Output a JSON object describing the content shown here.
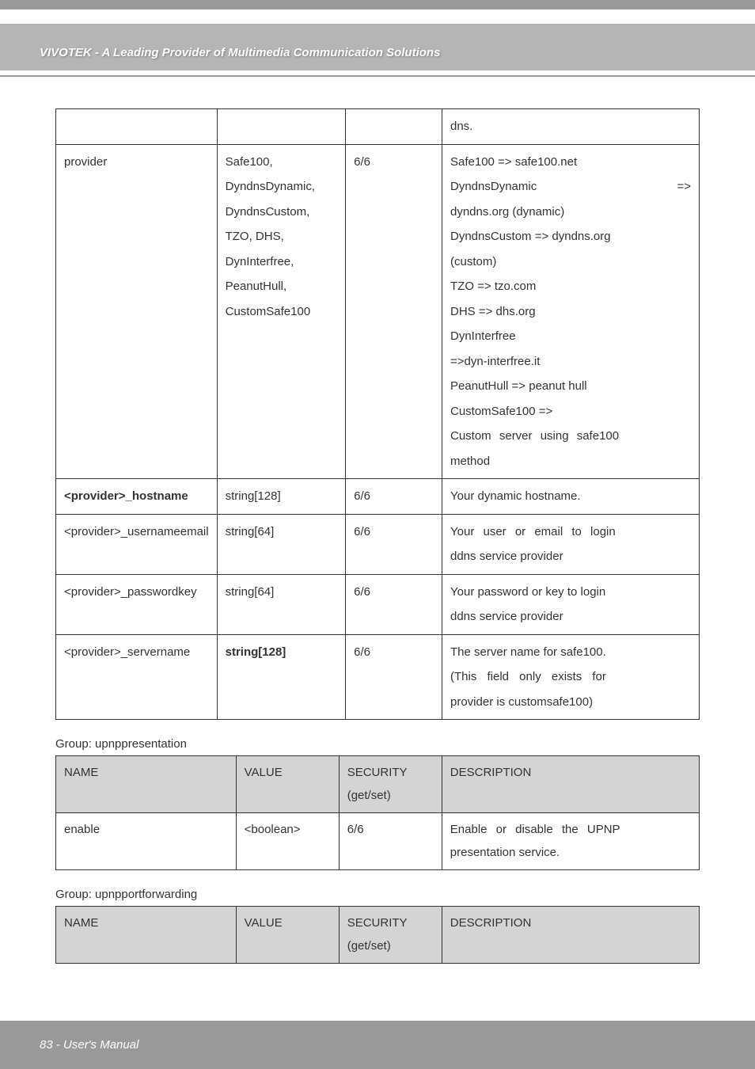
{
  "header": {
    "title": "VIVOTEK - A Leading Provider of Multimedia Communication Solutions"
  },
  "table_main": {
    "first_row": {
      "desc": "dns."
    },
    "rows": [
      {
        "name": "provider",
        "value": "Safe100, DyndnsDynamic, DyndnsCustom, TZO, DHS, DynInterfree, PeanutHull, CustomSafe100",
        "sec": "6/6",
        "desc_lines": [
          "Safe100 => safe100.net",
          "DyndnsDynamic         =>",
          "dyndns.org (dynamic)",
          "DyndnsCustom => dyndns.org",
          "(custom)",
          "TZO => tzo.com",
          "DHS => dhs.org",
          "DynInterfree",
          "=>dyn-interfree.it",
          "PeanutHull => peanut hull",
          "CustomSafe100 =>",
          "Custom server using safe100",
          "method"
        ]
      },
      {
        "name_html": "<b>&lt;provider&gt;_hostname</b>",
        "value": "string[128]",
        "sec": "6/6",
        "desc": "Your dynamic hostname."
      },
      {
        "name_html": "&lt;provider&gt;_usernameemail",
        "value": "string[64]",
        "sec": "6/6",
        "desc": "Your user or email to login ddns service provider"
      },
      {
        "name_html": "&lt;provider&gt;_passwordkey",
        "value": "string[64]",
        "sec": "6/6",
        "desc": "Your password or key to login ddns service provider"
      },
      {
        "name_html": "&lt;provider&gt;_servername",
        "value_html": "<b>string[128]</b>",
        "sec": "6/6",
        "desc": "The server name for safe100. (This field only exists for provider is customsafe100)"
      }
    ]
  },
  "group1": {
    "label": "Group: upnppresentation",
    "headers": [
      "NAME",
      "VALUE",
      "SECURITY (get/set)",
      "DESCRIPTION"
    ],
    "row": {
      "name": "enable",
      "value": "<boolean>",
      "sec": "6/6",
      "desc": "Enable or disable the UPNP presentation service."
    }
  },
  "group2": {
    "label": "Group: upnpportforwarding",
    "headers": [
      "NAME",
      "VALUE",
      "SECURITY (get/set)",
      "DESCRIPTION"
    ]
  },
  "footer": "83 - User's Manual"
}
